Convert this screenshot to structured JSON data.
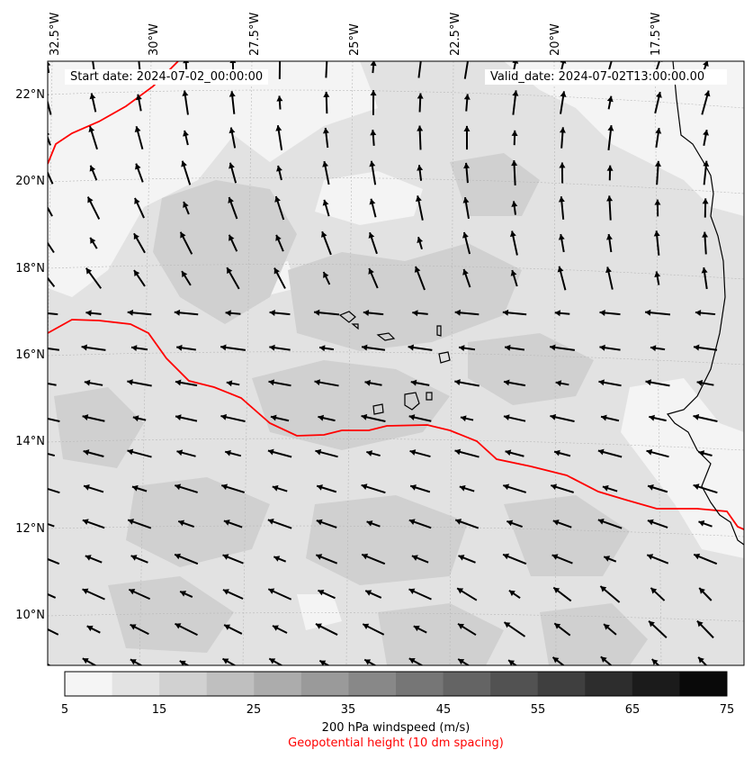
{
  "info": {
    "start_date": "Start date: 2024-07-02_00:00:00",
    "valid_date": "Valid_date: 2024-07-02T13:00:00.00"
  },
  "axes": {
    "lat_labels": [
      "22°N",
      "20°N",
      "18°N",
      "16°N",
      "14°N",
      "12°N",
      "10°N"
    ],
    "lon_labels": [
      "32.5°W",
      "30°W",
      "27.5°W",
      "25°W",
      "22.5°W",
      "20°W",
      "17.5°W"
    ]
  },
  "colorbar": {
    "ticks": [
      "5",
      "15",
      "25",
      "35",
      "45",
      "55",
      "65",
      "75"
    ],
    "levels": [
      5,
      10,
      15,
      20,
      25,
      30,
      35,
      40,
      45,
      50,
      55,
      60,
      65,
      70,
      75
    ],
    "label": "200 hPa windspeed (m/s)",
    "sublabel": "Geopotential height (10 dm spacing)",
    "sublabel_color": "#ff0000"
  },
  "colors": {
    "contour": "#ff0000",
    "coast": "#000000",
    "arrow": "#000000"
  },
  "map_data": {
    "projection": "conic",
    "lon_range": [
      -33,
      -16.5
    ],
    "lat_range": [
      9,
      22.8
    ]
  }
}
